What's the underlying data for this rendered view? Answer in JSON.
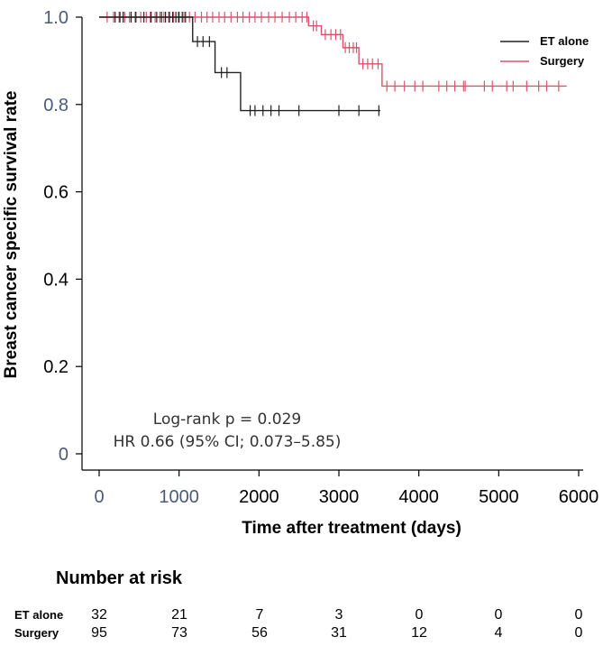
{
  "chart_data": {
    "type": "line",
    "title": "",
    "xlabel": "Time after treatment (days)",
    "ylabel": "Breast cancer specific survival rate",
    "xlim": [
      0,
      6000
    ],
    "ylim": [
      0,
      1.0
    ],
    "x_ticks": [
      "0",
      "1000",
      "2000",
      "3000",
      "4000",
      "5000",
      "6000"
    ],
    "x_tick_values": [
      0,
      1000,
      2000,
      3000,
      4000,
      5000,
      6000
    ],
    "y_ticks": [
      "0",
      "0.2",
      "0.4",
      "0.6",
      "0.8",
      "1.0"
    ],
    "y_tick_values": [
      0,
      0.2,
      0.4,
      0.6,
      0.8,
      1.0
    ],
    "legend": {
      "position": "top-right"
    },
    "series": [
      {
        "name": "ET alone",
        "color": "#222222",
        "steps": [
          [
            0,
            1.0
          ],
          [
            1170,
            0.944
          ],
          [
            1450,
            0.873
          ],
          [
            1770,
            0.786
          ],
          [
            3520,
            0.786
          ]
        ],
        "censors": [
          [
            200,
            1.0
          ],
          [
            260,
            1.0
          ],
          [
            300,
            1.0
          ],
          [
            400,
            1.0
          ],
          [
            460,
            1.0
          ],
          [
            560,
            1.0
          ],
          [
            650,
            1.0
          ],
          [
            720,
            1.0
          ],
          [
            780,
            1.0
          ],
          [
            830,
            1.0
          ],
          [
            880,
            1.0
          ],
          [
            920,
            1.0
          ],
          [
            960,
            1.0
          ],
          [
            1000,
            1.0
          ],
          [
            1040,
            1.0
          ],
          [
            1080,
            1.0
          ],
          [
            1230,
            0.944
          ],
          [
            1300,
            0.944
          ],
          [
            1380,
            0.944
          ],
          [
            1530,
            0.873
          ],
          [
            1600,
            0.873
          ],
          [
            1890,
            0.786
          ],
          [
            1950,
            0.786
          ],
          [
            2050,
            0.786
          ],
          [
            2150,
            0.786
          ],
          [
            2250,
            0.786
          ],
          [
            2500,
            0.786
          ],
          [
            3000,
            0.786
          ],
          [
            3250,
            0.786
          ],
          [
            3500,
            0.786
          ]
        ]
      },
      {
        "name": "Surgery",
        "color": "#d9546b",
        "steps": [
          [
            0,
            1.0
          ],
          [
            2620,
            0.98
          ],
          [
            2780,
            0.96
          ],
          [
            3050,
            0.93
          ],
          [
            3250,
            0.893
          ],
          [
            3540,
            0.842
          ],
          [
            5850,
            0.842
          ]
        ],
        "censors": [
          [
            100,
            1.0
          ],
          [
            180,
            1.0
          ],
          [
            250,
            1.0
          ],
          [
            320,
            1.0
          ],
          [
            380,
            1.0
          ],
          [
            450,
            1.0
          ],
          [
            520,
            1.0
          ],
          [
            590,
            1.0
          ],
          [
            640,
            1.0
          ],
          [
            700,
            1.0
          ],
          [
            760,
            1.0
          ],
          [
            810,
            1.0
          ],
          [
            870,
            1.0
          ],
          [
            930,
            1.0
          ],
          [
            990,
            1.0
          ],
          [
            1060,
            1.0
          ],
          [
            1130,
            1.0
          ],
          [
            1200,
            1.0
          ],
          [
            1280,
            1.0
          ],
          [
            1350,
            1.0
          ],
          [
            1420,
            1.0
          ],
          [
            1500,
            1.0
          ],
          [
            1570,
            1.0
          ],
          [
            1650,
            1.0
          ],
          [
            1730,
            1.0
          ],
          [
            1800,
            1.0
          ],
          [
            1880,
            1.0
          ],
          [
            1950,
            1.0
          ],
          [
            2030,
            1.0
          ],
          [
            2120,
            1.0
          ],
          [
            2200,
            1.0
          ],
          [
            2290,
            1.0
          ],
          [
            2380,
            1.0
          ],
          [
            2460,
            1.0
          ],
          [
            2540,
            1.0
          ],
          [
            2600,
            1.0
          ],
          [
            2680,
            0.98
          ],
          [
            2720,
            0.98
          ],
          [
            2830,
            0.96
          ],
          [
            2900,
            0.96
          ],
          [
            2960,
            0.96
          ],
          [
            3020,
            0.96
          ],
          [
            3080,
            0.93
          ],
          [
            3130,
            0.93
          ],
          [
            3180,
            0.93
          ],
          [
            3220,
            0.93
          ],
          [
            3300,
            0.893
          ],
          [
            3360,
            0.893
          ],
          [
            3420,
            0.893
          ],
          [
            3490,
            0.893
          ],
          [
            3600,
            0.842
          ],
          [
            3700,
            0.842
          ],
          [
            3820,
            0.842
          ],
          [
            3950,
            0.842
          ],
          [
            4050,
            0.842
          ],
          [
            4250,
            0.842
          ],
          [
            4350,
            0.842
          ],
          [
            4450,
            0.842
          ],
          [
            4560,
            0.842
          ],
          [
            4580,
            0.842
          ],
          [
            4820,
            0.842
          ],
          [
            4920,
            0.842
          ],
          [
            5100,
            0.842
          ],
          [
            5180,
            0.842
          ],
          [
            5350,
            0.842
          ],
          [
            5500,
            0.842
          ],
          [
            5600,
            0.842
          ],
          [
            5750,
            0.842
          ]
        ]
      }
    ],
    "annotations": [
      "Log-rank p = 0.029",
      "HR 0.66 (95% CI; 0.073–5.85)"
    ]
  },
  "risk_table": {
    "title": "Number at risk",
    "rows": [
      {
        "label": "ET alone",
        "values": [
          "32",
          "21",
          "7",
          "3",
          "0",
          "0",
          "0"
        ]
      },
      {
        "label": "Surgery",
        "values": [
          "95",
          "73",
          "56",
          "31",
          "12",
          "4",
          "0"
        ]
      }
    ]
  }
}
